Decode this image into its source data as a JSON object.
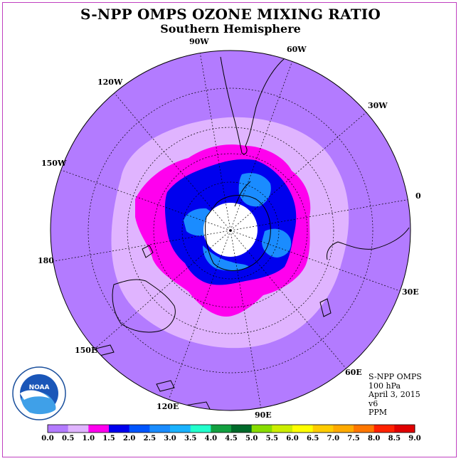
{
  "header": {
    "title": "S-NPP OMPS OZONE MIXING RATIO",
    "subtitle": "Southern Hemisphere"
  },
  "map": {
    "projection": "south-polar-stereographic",
    "ocean_color": "#b37bff",
    "polar_night_color": "#ffffff",
    "longitude_labels": [
      "90W",
      "60W",
      "30W",
      "0",
      "30E",
      "60E",
      "90E",
      "120E",
      "150E",
      "180",
      "150W",
      "120W"
    ]
  },
  "info": {
    "instrument": "S-NPP OMPS",
    "level": "100 hPa",
    "date": "April 3, 2015",
    "version": "v6",
    "units": "PPM"
  },
  "colorbar": {
    "labels": [
      "0.0",
      "0.5",
      "1.0",
      "1.5",
      "2.0",
      "2.5",
      "3.0",
      "3.5",
      "4.0",
      "4.5",
      "5.0",
      "5.5",
      "6.0",
      "6.5",
      "7.0",
      "7.5",
      "8.0",
      "8.5",
      "9.0"
    ],
    "colors": [
      "#b37bff",
      "#e0b4ff",
      "#ff00ee",
      "#0000ee",
      "#0055ff",
      "#1a8cff",
      "#1ab2ff",
      "#22ffcc",
      "#12a040",
      "#006a2a",
      "#88dd00",
      "#ccee00",
      "#ffff00",
      "#ffcc00",
      "#ffaa00",
      "#ff7700",
      "#ff2200",
      "#e00000",
      "#8b5a3c"
    ]
  },
  "logo": {
    "text": "NOAA",
    "ring_text": "NATIONAL OCEANIC AND ATMOSPHERIC ADMINISTRATION · U.S. DEPARTMENT OF COMMERCE"
  }
}
